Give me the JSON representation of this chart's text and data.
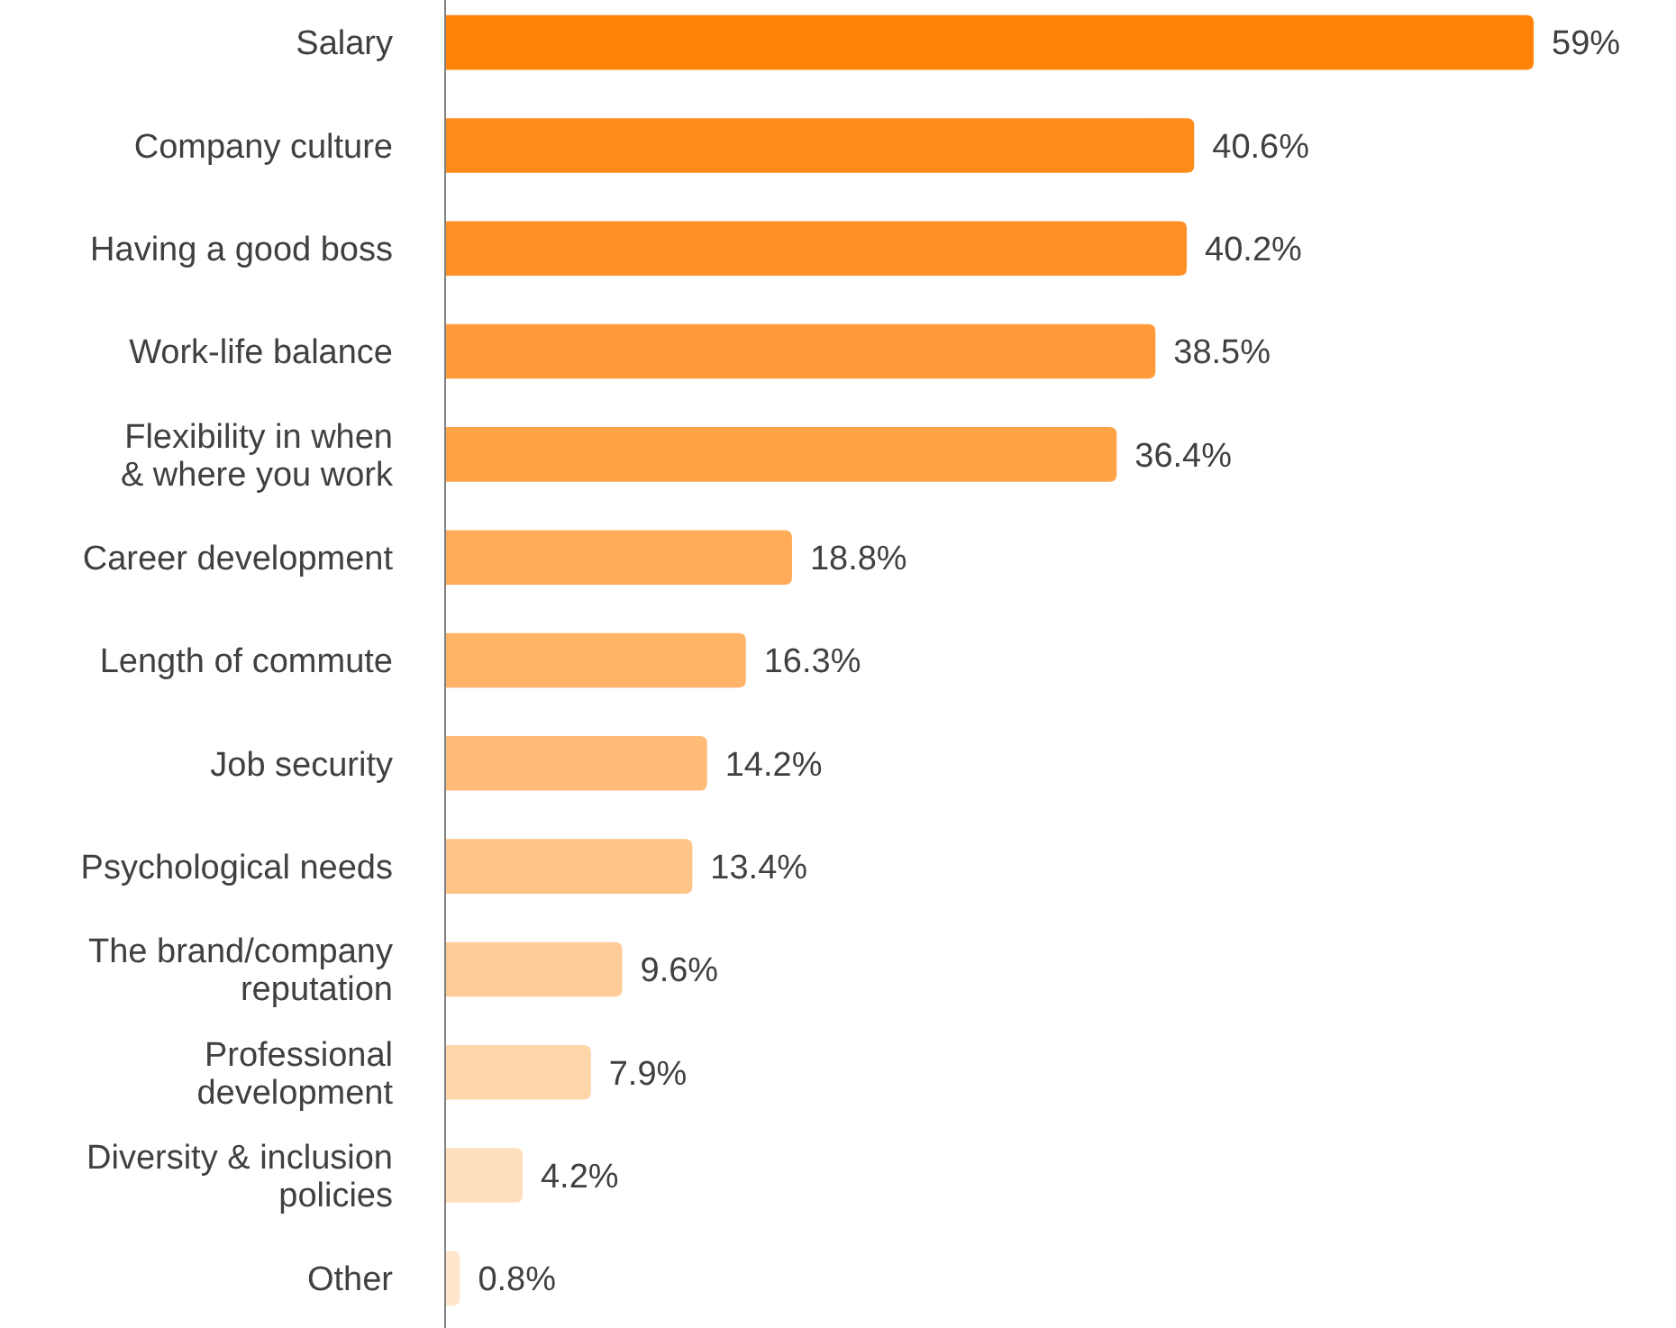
{
  "chart_data": {
    "type": "bar",
    "orientation": "horizontal",
    "categories": [
      "Salary",
      "Company culture",
      "Having a good boss",
      "Work-life balance",
      "Flexibility in when\n& where you work",
      "Career development",
      "Length of commute",
      "Job security",
      "Psychological needs",
      "The brand/company\nreputation",
      "Professional\ndevelopment",
      "Diversity & inclusion\npolicies",
      "Other"
    ],
    "values": [
      59,
      40.6,
      40.2,
      38.5,
      36.4,
      18.8,
      16.3,
      14.2,
      13.4,
      9.6,
      7.9,
      4.2,
      0.8
    ],
    "colors": [
      "#ff8308",
      "#ff8c1a",
      "#ff9126",
      "#ff9a38",
      "#ffa347",
      "#ffab57",
      "#ffb366",
      "#ffbb77",
      "#ffc488",
      "#ffcc99",
      "#ffd5aa",
      "#ffdebb",
      "#ffe6cc"
    ],
    "value_labels": [
      "59%",
      "40.6%",
      "40.2%",
      "38.5%",
      "36.4%",
      "18.8%",
      "16.3%",
      "14.2%",
      "13.4%",
      "9.6%",
      "7.9%",
      "4.2%",
      "0.8%"
    ],
    "tick_labels": "y"
  }
}
